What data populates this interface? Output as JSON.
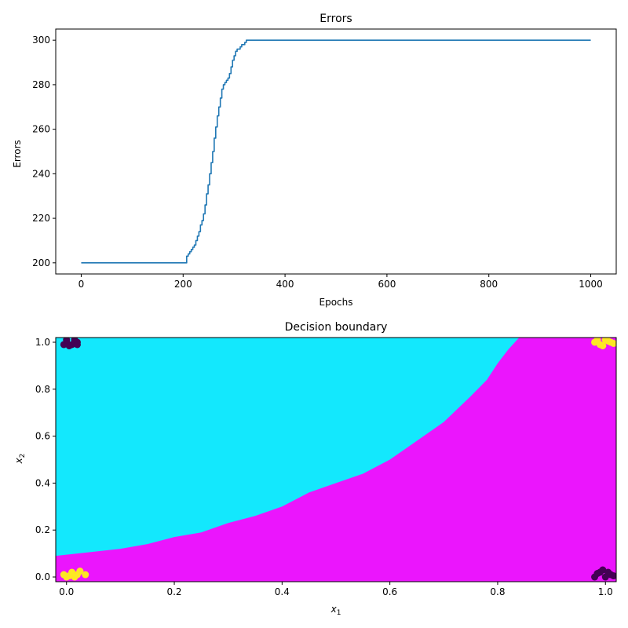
{
  "chart_data": [
    {
      "type": "line",
      "title": "Errors",
      "xlabel": "Epochs",
      "ylabel": "Errors",
      "xlim": [
        -50,
        1050
      ],
      "ylim": [
        195,
        305
      ],
      "xticks": [
        0,
        200,
        400,
        600,
        800,
        1000
      ],
      "yticks": [
        200,
        220,
        240,
        260,
        280,
        300
      ],
      "xtick_labels": [
        "0",
        "200",
        "400",
        "600",
        "800",
        "1000"
      ],
      "ytick_labels": [
        "200",
        "220",
        "240",
        "260",
        "280",
        "300"
      ],
      "grid": false,
      "colors": {
        "line": "#1f77b4"
      },
      "series": [
        {
          "x": [
            0,
            205,
            207,
            210,
            213,
            216,
            219,
            222,
            225,
            228,
            231,
            234,
            237,
            240,
            243,
            246,
            249,
            252,
            255,
            258,
            261,
            264,
            267,
            270,
            273,
            276,
            279,
            282,
            285,
            288,
            291,
            294,
            297,
            300,
            303,
            306,
            309,
            312,
            315,
            318,
            321,
            324,
            327,
            330,
            333,
            336,
            1000
          ],
          "y": [
            200,
            200,
            203,
            204,
            205,
            206,
            207,
            208,
            210,
            212,
            214,
            217,
            219,
            222,
            226,
            231,
            235,
            240,
            245,
            250,
            256,
            261,
            266,
            270,
            274,
            278,
            280,
            281,
            282,
            283,
            285,
            288,
            291,
            293,
            295,
            296,
            296,
            297,
            298,
            298,
            299,
            300,
            300,
            300,
            300,
            300,
            300
          ]
        }
      ]
    },
    {
      "type": "heatmap",
      "title": "Decision boundary",
      "xlabel": "x1",
      "ylabel": "x2",
      "xlim": [
        -0.02,
        1.02
      ],
      "ylim": [
        -0.02,
        1.02
      ],
      "xticks": [
        0.0,
        0.2,
        0.4,
        0.6,
        0.8,
        1.0
      ],
      "yticks": [
        0.0,
        0.2,
        0.4,
        0.6,
        0.8,
        1.0
      ],
      "xtick_labels": [
        "0.0",
        "0.2",
        "0.4",
        "0.6",
        "0.8",
        "1.0"
      ],
      "ytick_labels": [
        "0.0",
        "0.2",
        "0.4",
        "0.6",
        "0.8",
        "1.0"
      ],
      "grid": false,
      "colors": {
        "region_upper": "#13e8fd",
        "region_lower": "#eb15fd",
        "class_0": "#440154",
        "class_1": "#fde725"
      },
      "boundary": {
        "x": [
          -0.02,
          0.02,
          0.06,
          0.1,
          0.15,
          0.2,
          0.25,
          0.3,
          0.35,
          0.4,
          0.45,
          0.5,
          0.55,
          0.6,
          0.65,
          0.7,
          0.75,
          0.78,
          0.8,
          0.82,
          0.84
        ],
        "y": [
          0.09,
          0.1,
          0.11,
          0.12,
          0.14,
          0.17,
          0.19,
          0.23,
          0.26,
          0.3,
          0.36,
          0.4,
          0.44,
          0.5,
          0.58,
          0.66,
          0.77,
          0.84,
          0.91,
          0.97,
          1.02
        ]
      },
      "points": [
        {
          "class": 0,
          "x": 0.0,
          "y": 1.0
        },
        {
          "class": 0,
          "x": 0.01,
          "y": 0.99
        },
        {
          "class": 0,
          "x": 0.02,
          "y": 1.0
        },
        {
          "class": 0,
          "x": -0.005,
          "y": 0.99
        },
        {
          "class": 0,
          "x": 0.015,
          "y": 1.01
        },
        {
          "class": 0,
          "x": 0.005,
          "y": 0.985
        },
        {
          "class": 0,
          "x": 0.02,
          "y": 0.99
        },
        {
          "class": 0,
          "x": 0.0,
          "y": 1.01
        },
        {
          "class": 0,
          "x": 0.98,
          "y": 0.0
        },
        {
          "class": 0,
          "x": 0.99,
          "y": 0.02
        },
        {
          "class": 0,
          "x": 1.0,
          "y": 0.0
        },
        {
          "class": 0,
          "x": 1.01,
          "y": 0.01
        },
        {
          "class": 0,
          "x": 0.995,
          "y": 0.03
        },
        {
          "class": 0,
          "x": 1.015,
          "y": 0.005
        },
        {
          "class": 0,
          "x": 0.985,
          "y": 0.015
        },
        {
          "class": 0,
          "x": 1.005,
          "y": 0.02
        },
        {
          "class": 1,
          "x": 0.0,
          "y": 0.0
        },
        {
          "class": 1,
          "x": 0.01,
          "y": 0.02
        },
        {
          "class": 1,
          "x": 0.02,
          "y": 0.01
        },
        {
          "class": 1,
          "x": -0.005,
          "y": 0.01
        },
        {
          "class": 1,
          "x": 0.015,
          "y": 0.0
        },
        {
          "class": 1,
          "x": 0.025,
          "y": 0.025
        },
        {
          "class": 1,
          "x": 0.005,
          "y": 0.005
        },
        {
          "class": 1,
          "x": 0.035,
          "y": 0.01
        },
        {
          "class": 1,
          "x": 0.98,
          "y": 1.0
        },
        {
          "class": 1,
          "x": 0.99,
          "y": 0.99
        },
        {
          "class": 1,
          "x": 1.0,
          "y": 1.01
        },
        {
          "class": 1,
          "x": 1.01,
          "y": 1.0
        },
        {
          "class": 1,
          "x": 0.995,
          "y": 0.985
        },
        {
          "class": 1,
          "x": 1.015,
          "y": 0.995
        },
        {
          "class": 1,
          "x": 0.985,
          "y": 1.01
        },
        {
          "class": 1,
          "x": 1.005,
          "y": 1.005
        }
      ]
    }
  ]
}
